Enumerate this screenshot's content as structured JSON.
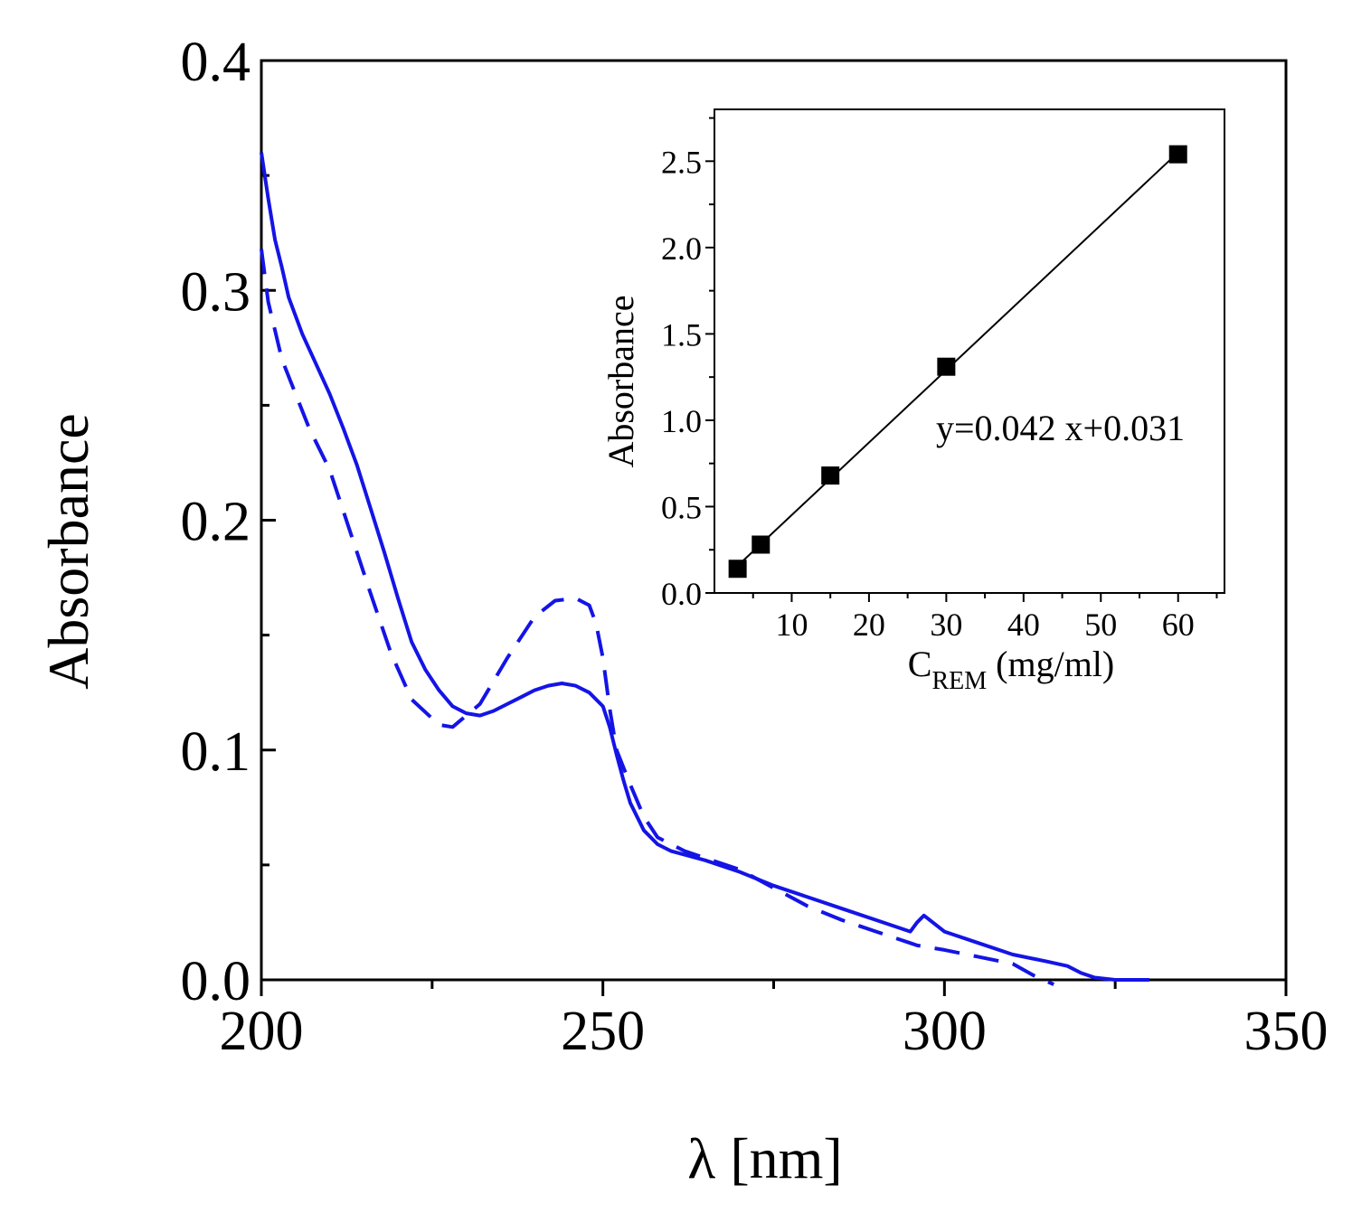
{
  "chart_data": [
    {
      "id": "main",
      "type": "line",
      "xlabel": "λ [nm]",
      "ylabel": "Absorbance",
      "xlim": [
        200,
        350
      ],
      "ylim": [
        0,
        0.4
      ],
      "xticks": [
        200,
        250,
        300,
        350
      ],
      "xtick_labels": [
        "200",
        "250",
        "300",
        "350"
      ],
      "yticks": [
        0,
        0.1,
        0.2,
        0.3,
        0.4
      ],
      "ytick_labels": [
        "0.0",
        "0.1",
        "0.2",
        "0.3",
        "0.4"
      ],
      "series": [
        {
          "name": "solid",
          "style": "solid",
          "color": "#1414e6",
          "x": [
            200,
            201,
            202,
            203,
            204,
            206,
            208,
            210,
            212,
            214,
            216,
            218,
            220,
            222,
            224,
            226,
            228,
            230,
            232,
            234,
            236,
            238,
            240,
            242,
            244,
            246,
            248,
            250,
            251,
            252,
            253,
            254,
            256,
            258,
            260,
            265,
            270,
            275,
            280,
            285,
            290,
            295,
            296,
            297,
            300,
            305,
            310,
            315,
            318,
            320,
            322,
            325,
            330
          ],
          "y": [
            0.36,
            0.34,
            0.322,
            0.31,
            0.297,
            0.281,
            0.268,
            0.255,
            0.24,
            0.224,
            0.205,
            0.186,
            0.166,
            0.147,
            0.135,
            0.126,
            0.119,
            0.116,
            0.115,
            0.117,
            0.12,
            0.123,
            0.126,
            0.128,
            0.129,
            0.128,
            0.125,
            0.119,
            0.11,
            0.098,
            0.087,
            0.077,
            0.065,
            0.059,
            0.056,
            0.052,
            0.047,
            0.041,
            0.036,
            0.031,
            0.026,
            0.021,
            0.025,
            0.028,
            0.021,
            0.016,
            0.011,
            0.008,
            0.006,
            0.003,
            0.001,
            0.0,
            0.0
          ]
        },
        {
          "name": "dashed",
          "style": "dashed",
          "color": "#1414e6",
          "x": [
            200,
            201,
            203,
            205,
            207,
            210,
            213,
            216,
            219,
            222,
            226,
            228,
            232,
            236,
            240,
            243,
            246,
            248,
            249,
            250,
            251,
            252,
            254,
            256,
            258,
            262,
            266,
            270,
            275,
            280,
            285,
            290,
            295,
            296,
            300,
            305,
            310,
            313,
            316
          ],
          "y": [
            0.318,
            0.295,
            0.27,
            0.255,
            0.24,
            0.222,
            0.195,
            0.168,
            0.142,
            0.122,
            0.111,
            0.11,
            0.12,
            0.14,
            0.158,
            0.165,
            0.166,
            0.163,
            0.155,
            0.14,
            0.118,
            0.1,
            0.085,
            0.071,
            0.062,
            0.056,
            0.052,
            0.048,
            0.04,
            0.032,
            0.026,
            0.021,
            0.016,
            0.015,
            0.013,
            0.01,
            0.007,
            0.002,
            -0.002
          ]
        }
      ]
    },
    {
      "id": "inset",
      "type": "scatter",
      "xlabel_main": "C",
      "xlabel_sub": "REM",
      "xlabel_unit": "(mg/ml)",
      "ylabel": "Absorbance",
      "xlim": [
        0,
        66
      ],
      "ylim": [
        0,
        2.8
      ],
      "xticks": [
        10,
        20,
        30,
        40,
        50,
        60
      ],
      "xtick_labels": [
        "10",
        "20",
        "30",
        "40",
        "50",
        "60"
      ],
      "yticks": [
        0,
        0.5,
        1.0,
        1.5,
        2.0,
        2.5
      ],
      "ytick_labels": [
        "0.0",
        "0.5",
        "1.0",
        "1.5",
        "2.0",
        "2.5"
      ],
      "points": {
        "x": [
          3,
          6,
          15,
          30,
          60
        ],
        "y": [
          0.14,
          0.28,
          0.68,
          1.31,
          2.54
        ]
      },
      "fit": {
        "slope": 0.042,
        "intercept": 0.031,
        "x_range": [
          3,
          60
        ]
      },
      "equation": "y=0.042 x+0.031"
    }
  ]
}
